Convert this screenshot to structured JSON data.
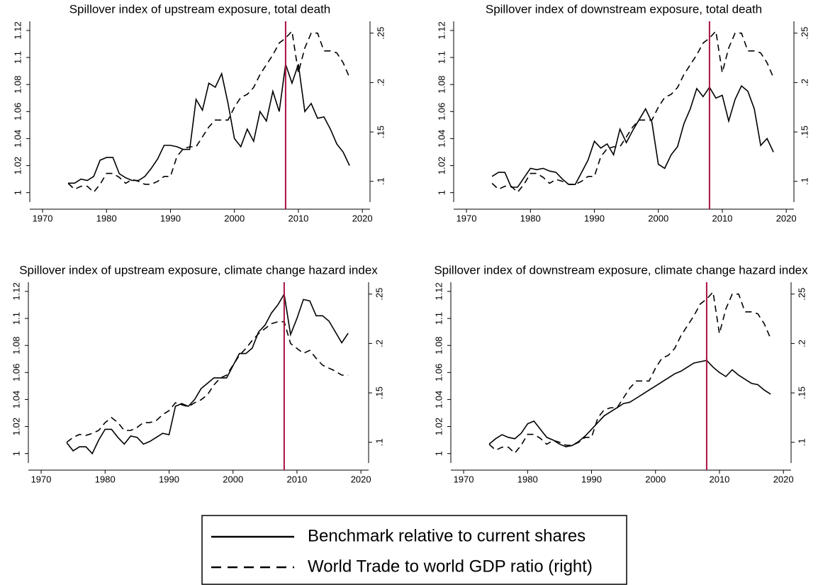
{
  "chart_data": [
    {
      "type": "line",
      "title": "Spillover index of upstream exposure, total death",
      "x": [
        1974,
        1975,
        1976,
        1977,
        1978,
        1979,
        1980,
        1981,
        1982,
        1983,
        1984,
        1985,
        1986,
        1987,
        1988,
        1989,
        1990,
        1991,
        1992,
        1993,
        1994,
        1995,
        1996,
        1997,
        1998,
        1999,
        2000,
        2001,
        2002,
        2003,
        2004,
        2005,
        2006,
        2007,
        2008,
        2009,
        2010,
        2011,
        2012,
        2013,
        2014,
        2015,
        2016,
        2017,
        2018
      ],
      "series": [
        {
          "name": "Benchmark relative to current shares",
          "color": "#000000",
          "dash": "none",
          "values": [
            1.007,
            1.007,
            1.01,
            1.009,
            1.012,
            1.024,
            1.026,
            1.026,
            1.014,
            1.011,
            1.009,
            1.009,
            1.012,
            1.018,
            1.025,
            1.035,
            1.035,
            1.034,
            1.032,
            1.032,
            1.069,
            1.061,
            1.081,
            1.078,
            1.088,
            1.066,
            1.04,
            1.034,
            1.047,
            1.038,
            1.06,
            1.053,
            1.075,
            1.06,
            1.095,
            1.081,
            1.095,
            1.06,
            1.066,
            1.055,
            1.056,
            1.047,
            1.036,
            1.03,
            1.02
          ]
        },
        {
          "name": "World Trade to world GDP ratio (right)",
          "color": "#000000",
          "dash": "9 6",
          "axis": "y2",
          "values": [
            0.098,
            0.092,
            0.095,
            0.095,
            0.089,
            0.097,
            0.108,
            0.108,
            0.104,
            0.098,
            0.102,
            0.1,
            0.097,
            0.097,
            0.1,
            0.105,
            0.105,
            0.125,
            0.133,
            0.135,
            0.135,
            0.145,
            0.155,
            0.162,
            0.162,
            0.162,
            0.175,
            0.185,
            0.188,
            0.195,
            0.208,
            0.218,
            0.228,
            0.24,
            0.245,
            0.252,
            0.21,
            0.235,
            0.25,
            0.25,
            0.232,
            0.232,
            0.23,
            0.22,
            0.205
          ]
        }
      ],
      "xlim": [
        1968,
        2021.2
      ],
      "xticks": [
        1970,
        1980,
        1990,
        2000,
        2010,
        2020
      ],
      "ylim": [
        0.993,
        1.1268
      ],
      "yticks": [
        1,
        1.02,
        1.04,
        1.06,
        1.08,
        1.1,
        1.12
      ],
      "y2lim": [
        0.079,
        0.262
      ],
      "y2ticks": [
        {
          "value": 0.1,
          "label": ".1"
        },
        {
          "value": 0.15,
          "label": ".15"
        },
        {
          "value": 0.2,
          "label": ".2"
        },
        {
          "value": 0.25,
          "label": ".25"
        }
      ],
      "reference_line": {
        "x": 2008,
        "color": "#a8123e"
      }
    },
    {
      "type": "line",
      "title": "Spillover index of downstream exposure, total death",
      "x": [
        1974,
        1975,
        1976,
        1977,
        1978,
        1979,
        1980,
        1981,
        1982,
        1983,
        1984,
        1985,
        1986,
        1987,
        1988,
        1989,
        1990,
        1991,
        1992,
        1993,
        1994,
        1995,
        1996,
        1997,
        1998,
        1999,
        2000,
        2001,
        2002,
        2003,
        2004,
        2005,
        2006,
        2007,
        2008,
        2009,
        2010,
        2011,
        2012,
        2013,
        2014,
        2015,
        2016,
        2017,
        2018
      ],
      "series": [
        {
          "name": "Benchmark relative to current shares",
          "color": "#000000",
          "dash": "none",
          "values": [
            1.012,
            1.015,
            1.015,
            1.004,
            1.004,
            1.011,
            1.018,
            1.017,
            1.018,
            1.016,
            1.015,
            1.01,
            1.006,
            1.006,
            1.015,
            1.024,
            1.038,
            1.033,
            1.036,
            1.028,
            1.047,
            1.037,
            1.046,
            1.054,
            1.062,
            1.052,
            1.021,
            1.018,
            1.028,
            1.034,
            1.051,
            1.062,
            1.077,
            1.071,
            1.078,
            1.07,
            1.072,
            1.053,
            1.069,
            1.079,
            1.075,
            1.062,
            1.035,
            1.04,
            1.03
          ]
        },
        {
          "name": "World Trade to world GDP ratio (right)",
          "color": "#000000",
          "dash": "9 6",
          "axis": "y2",
          "values": [
            0.098,
            0.092,
            0.095,
            0.095,
            0.089,
            0.097,
            0.108,
            0.108,
            0.104,
            0.098,
            0.102,
            0.1,
            0.097,
            0.097,
            0.1,
            0.105,
            0.105,
            0.125,
            0.133,
            0.135,
            0.135,
            0.145,
            0.155,
            0.162,
            0.162,
            0.162,
            0.175,
            0.185,
            0.188,
            0.195,
            0.208,
            0.218,
            0.228,
            0.24,
            0.245,
            0.252,
            0.21,
            0.235,
            0.25,
            0.25,
            0.232,
            0.232,
            0.23,
            0.22,
            0.205
          ]
        }
      ],
      "xlim": [
        1968,
        2021.2
      ],
      "xticks": [
        1970,
        1980,
        1990,
        2000,
        2010,
        2020
      ],
      "ylim": [
        0.993,
        1.1268
      ],
      "yticks": [
        1,
        1.02,
        1.04,
        1.06,
        1.08,
        1.1,
        1.12
      ],
      "y2lim": [
        0.079,
        0.262
      ],
      "y2ticks": [
        {
          "value": 0.1,
          "label": ".1"
        },
        {
          "value": 0.15,
          "label": ".15"
        },
        {
          "value": 0.2,
          "label": ".2"
        },
        {
          "value": 0.25,
          "label": ".25"
        }
      ],
      "reference_line": {
        "x": 2008,
        "color": "#a8123e"
      }
    },
    {
      "type": "line",
      "title": "Spillover index of upstream exposure, climate change hazard index",
      "x": [
        1974,
        1975,
        1976,
        1977,
        1978,
        1979,
        1980,
        1981,
        1982,
        1983,
        1984,
        1985,
        1986,
        1987,
        1988,
        1989,
        1990,
        1991,
        1992,
        1993,
        1994,
        1995,
        1996,
        1997,
        1998,
        1999,
        2000,
        2001,
        2002,
        2003,
        2004,
        2005,
        2006,
        2007,
        2008,
        2009,
        2010,
        2011,
        2012,
        2013,
        2014,
        2015,
        2016,
        2017,
        2018
      ],
      "series": [
        {
          "name": "Benchmark relative to current shares",
          "color": "#000000",
          "dash": "none",
          "values": [
            1.008,
            1.002,
            1.005,
            1.005,
            1.0,
            1.01,
            1.018,
            1.018,
            1.012,
            1.007,
            1.013,
            1.012,
            1.007,
            1.009,
            1.012,
            1.015,
            1.014,
            1.035,
            1.037,
            1.035,
            1.04,
            1.048,
            1.052,
            1.056,
            1.056,
            1.056,
            1.065,
            1.074,
            1.074,
            1.078,
            1.09,
            1.095,
            1.104,
            1.11,
            1.118,
            1.088,
            1.1,
            1.114,
            1.113,
            1.102,
            1.102,
            1.098,
            1.09,
            1.082,
            1.089
          ]
        },
        {
          "name": "World Trade to world GDP ratio (right)",
          "color": "#000000",
          "dash": "9 6",
          "axis": "y2",
          "values": [
            0.1,
            0.105,
            0.108,
            0.107,
            0.109,
            0.112,
            0.12,
            0.125,
            0.12,
            0.112,
            0.112,
            0.115,
            0.12,
            0.12,
            0.122,
            0.128,
            0.132,
            0.14,
            0.138,
            0.136,
            0.14,
            0.143,
            0.148,
            0.158,
            0.165,
            0.168,
            0.178,
            0.188,
            0.195,
            0.203,
            0.21,
            0.215,
            0.22,
            0.222,
            0.222,
            0.2,
            0.195,
            0.19,
            0.193,
            0.185,
            0.178,
            0.175,
            0.172,
            0.168,
            0.168
          ]
        }
      ],
      "xlim": [
        1968,
        2021.2
      ],
      "xticks": [
        1970,
        1980,
        1990,
        2000,
        2010,
        2020
      ],
      "ylim": [
        0.993,
        1.1268
      ],
      "yticks": [
        1,
        1.02,
        1.04,
        1.06,
        1.08,
        1.1,
        1.12
      ],
      "y2lim": [
        0.079,
        0.262
      ],
      "y2ticks": [
        {
          "value": 0.1,
          "label": ".1"
        },
        {
          "value": 0.15,
          "label": ".15"
        },
        {
          "value": 0.2,
          "label": ".2"
        },
        {
          "value": 0.25,
          "label": ".25"
        }
      ],
      "reference_line": {
        "x": 2008,
        "color": "#a8123e"
      }
    },
    {
      "type": "line",
      "title": "Spillover index of downstream exposure, climate change hazard index",
      "x": [
        1974,
        1975,
        1976,
        1977,
        1978,
        1979,
        1980,
        1981,
        1982,
        1983,
        1984,
        1985,
        1986,
        1987,
        1988,
        1989,
        1990,
        1991,
        1992,
        1993,
        1994,
        1995,
        1996,
        1997,
        1998,
        1999,
        2000,
        2001,
        2002,
        2003,
        2004,
        2005,
        2006,
        2007,
        2008,
        2009,
        2010,
        2011,
        2012,
        2013,
        2014,
        2015,
        2016,
        2017,
        2018
      ],
      "series": [
        {
          "name": "Benchmark relative to current shares",
          "color": "#000000",
          "dash": "none",
          "values": [
            1.007,
            1.011,
            1.014,
            1.012,
            1.011,
            1.015,
            1.022,
            1.024,
            1.018,
            1.012,
            1.01,
            1.007,
            1.005,
            1.006,
            1.009,
            1.013,
            1.018,
            1.023,
            1.028,
            1.031,
            1.034,
            1.037,
            1.038,
            1.041,
            1.044,
            1.047,
            1.05,
            1.053,
            1.056,
            1.059,
            1.061,
            1.064,
            1.067,
            1.068,
            1.069,
            1.064,
            1.06,
            1.057,
            1.062,
            1.058,
            1.055,
            1.052,
            1.051,
            1.047,
            1.044
          ]
        },
        {
          "name": "World Trade to world GDP ratio (right)",
          "color": "#000000",
          "dash": "9 6",
          "axis": "y2",
          "values": [
            0.098,
            0.092,
            0.095,
            0.095,
            0.089,
            0.097,
            0.108,
            0.108,
            0.104,
            0.098,
            0.102,
            0.1,
            0.097,
            0.097,
            0.1,
            0.105,
            0.105,
            0.125,
            0.133,
            0.135,
            0.135,
            0.145,
            0.155,
            0.162,
            0.162,
            0.162,
            0.175,
            0.185,
            0.188,
            0.195,
            0.208,
            0.218,
            0.228,
            0.24,
            0.245,
            0.252,
            0.21,
            0.235,
            0.25,
            0.25,
            0.232,
            0.232,
            0.23,
            0.22,
            0.205
          ]
        }
      ],
      "xlim": [
        1968,
        2021.2
      ],
      "xticks": [
        1970,
        1980,
        1990,
        2000,
        2010,
        2020
      ],
      "ylim": [
        0.993,
        1.1268
      ],
      "yticks": [
        1,
        1.02,
        1.04,
        1.06,
        1.08,
        1.1,
        1.12
      ],
      "y2lim": [
        0.079,
        0.262
      ],
      "y2ticks": [
        {
          "value": 0.1,
          "label": ".1"
        },
        {
          "value": 0.15,
          "label": ".15"
        },
        {
          "value": 0.2,
          "label": ".2"
        },
        {
          "value": 0.25,
          "label": ".25"
        }
      ],
      "reference_line": {
        "x": 2008,
        "color": "#a8123e"
      }
    }
  ]
}
